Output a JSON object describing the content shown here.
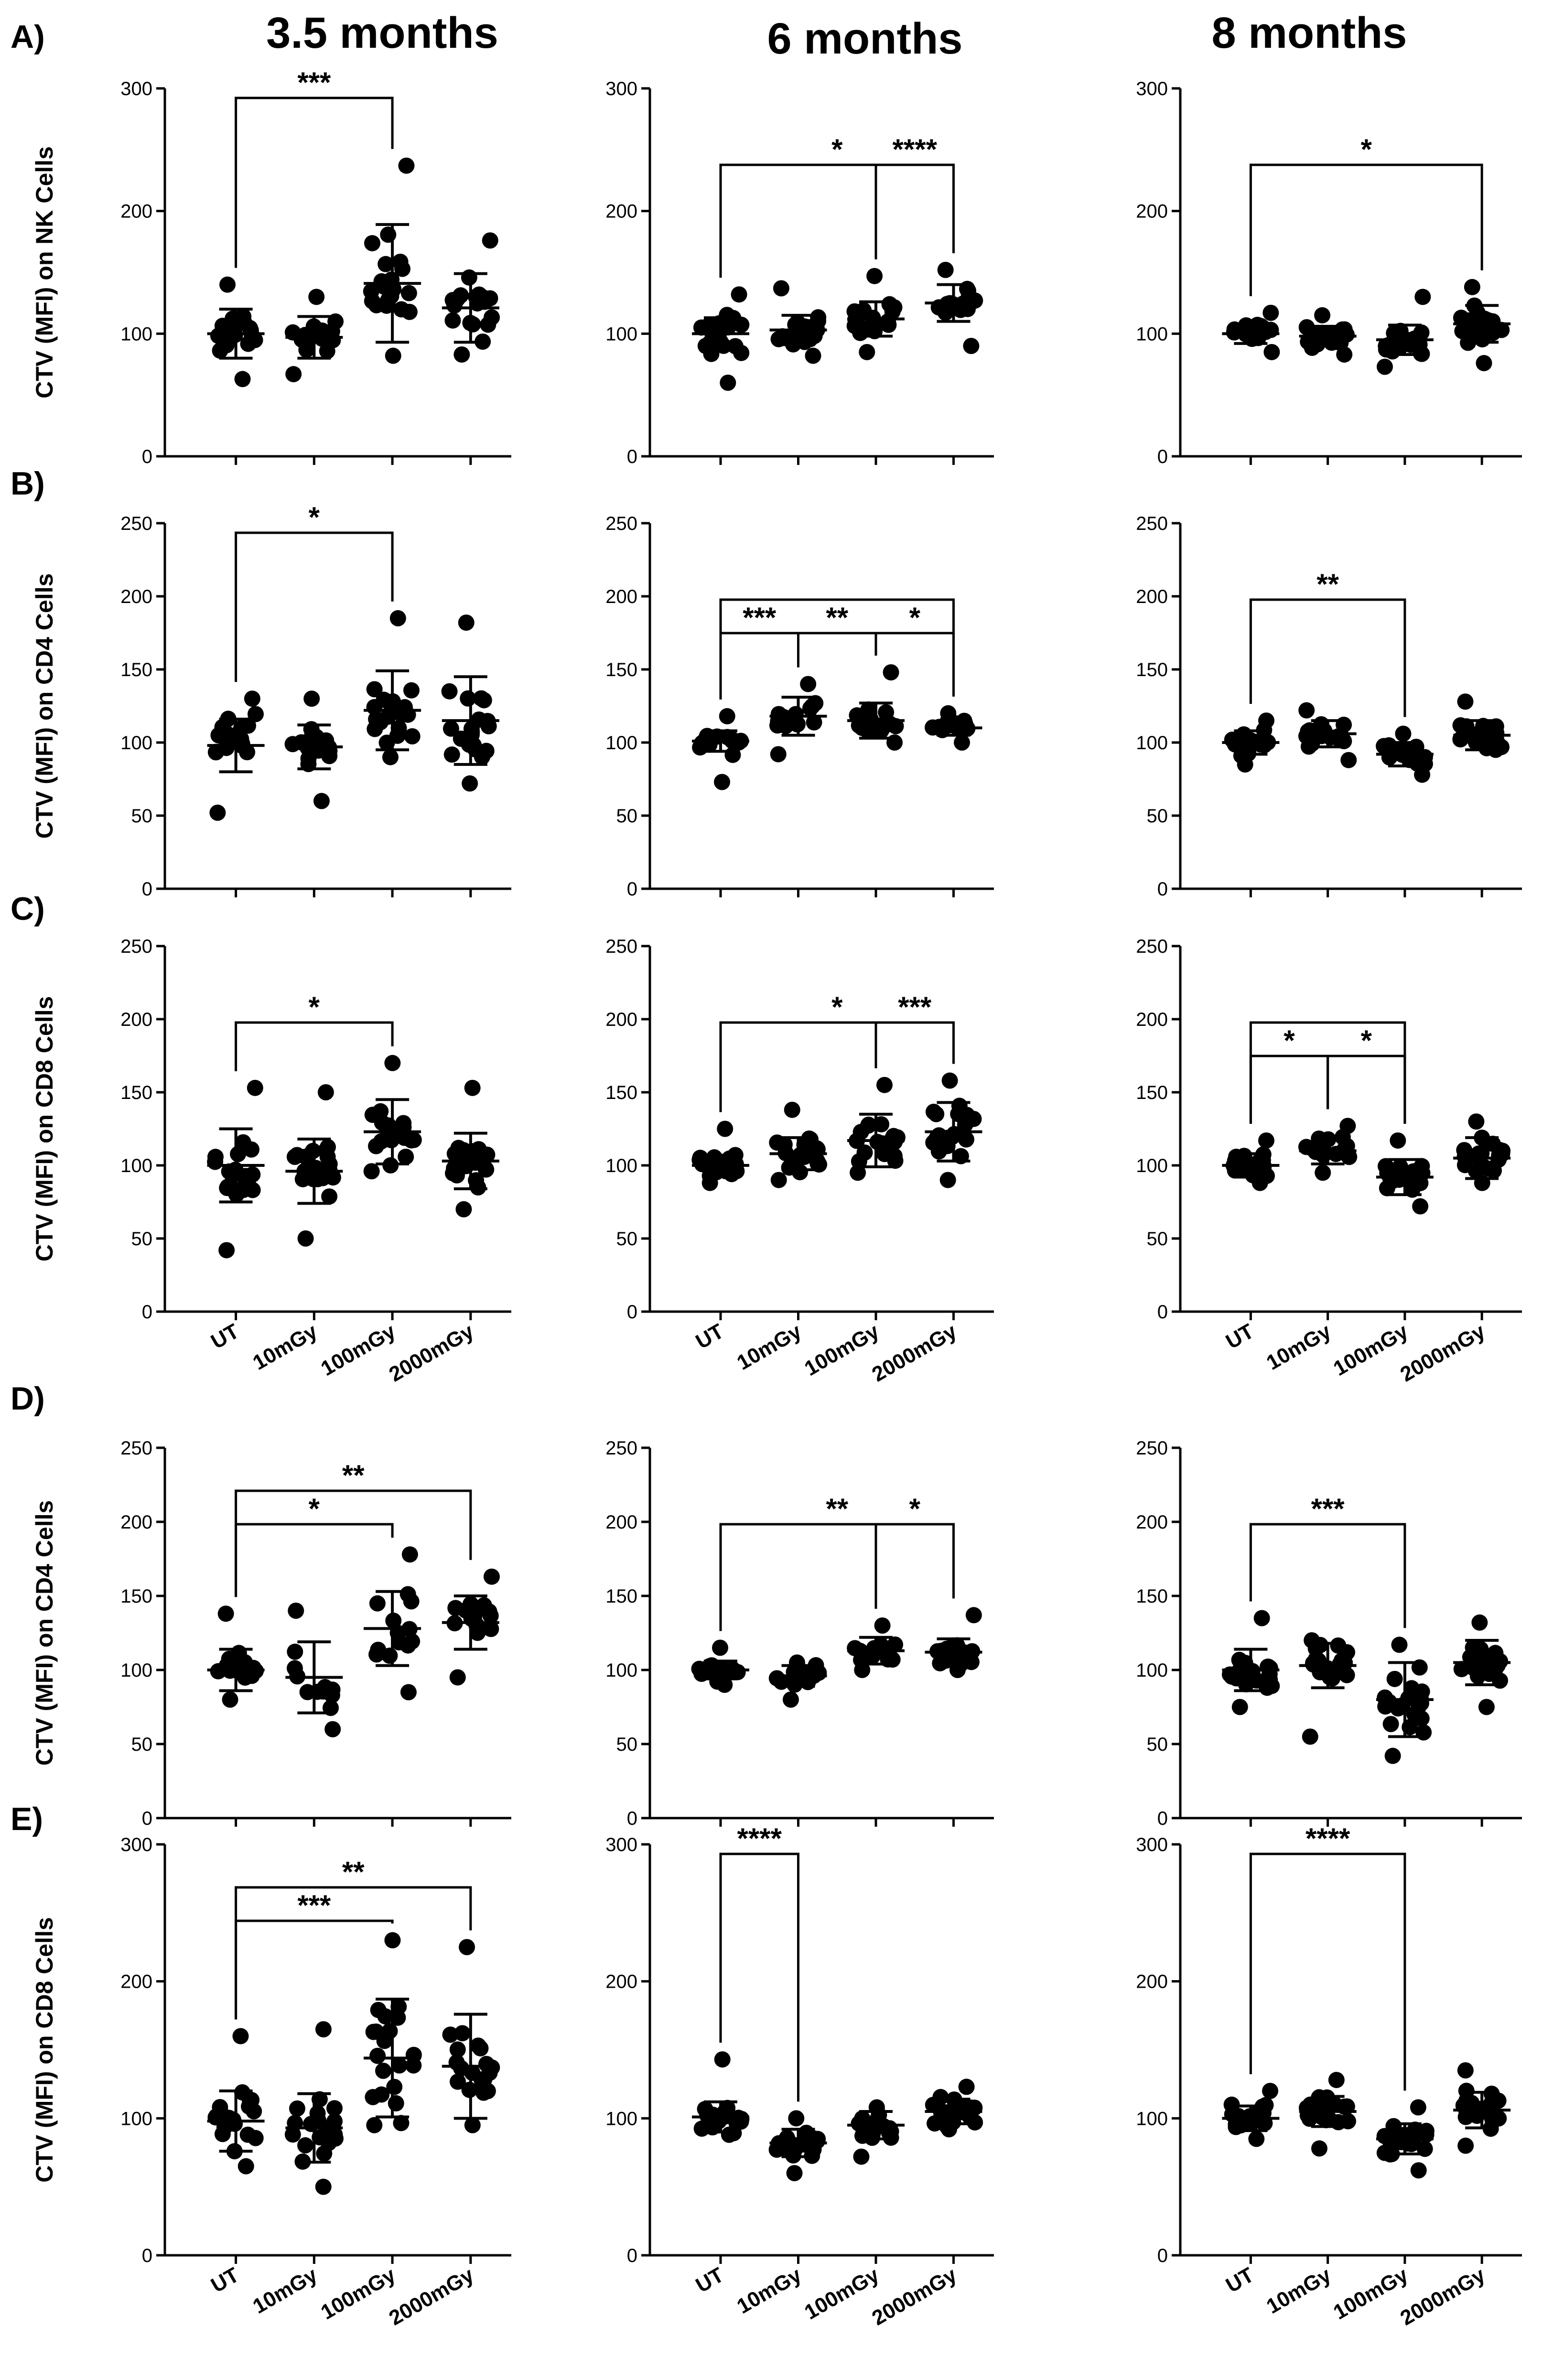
{
  "figure": {
    "column_titles": [
      "3.5 months",
      "6 months",
      "8 months"
    ],
    "row_letters": [
      "A)",
      "B)",
      "C)",
      "D)",
      "E)"
    ],
    "ylabels": [
      "CTV (MFI) on NK Cells",
      "CTV (MFI) on CD4 Cells",
      "CTV (MFI) on CD8 Cells",
      "CTV (MFI) on CD4 Cells",
      "CTV (MFI) on CD8 Cells"
    ]
  },
  "chart_data": {
    "type": "scatter",
    "categories": [
      "UT",
      "10mGy",
      "100mGy",
      "2000mGy"
    ],
    "panels": [
      {
        "row": "A",
        "col": "3.5 months",
        "ylabel": "CTV (MFI) on NK Cells",
        "yticks": [
          0,
          100,
          200,
          300
        ],
        "ylim": [
          0,
          300
        ],
        "groups": [
          {
            "center": 100,
            "spread": 20,
            "n": 20,
            "min": 63,
            "max": 140,
            "mean": 100,
            "sd": 20
          },
          {
            "center": 97,
            "spread": 18,
            "n": 20,
            "min": 67,
            "max": 130,
            "mean": 97,
            "sd": 17
          },
          {
            "center": 140,
            "spread": 48,
            "n": 20,
            "min": 82,
            "max": 237,
            "mean": 141,
            "sd": 48
          },
          {
            "center": 120,
            "spread": 30,
            "n": 20,
            "min": 83,
            "max": 176,
            "mean": 121,
            "sd": 28
          }
        ],
        "comparisons": [
          {
            "from": 0,
            "to": 2,
            "label": "***",
            "bar": 3
          }
        ]
      },
      {
        "row": "A",
        "col": "6 months",
        "ylabel": "",
        "yticks": [
          0,
          100,
          200,
          300
        ],
        "ylim": [
          0,
          300
        ],
        "groups": [
          {
            "center": 100,
            "spread": 17,
            "n": 20,
            "min": 60,
            "max": 132,
            "mean": 100,
            "sd": 13
          },
          {
            "center": 103,
            "spread": 15,
            "n": 20,
            "min": 82,
            "max": 137,
            "mean": 103,
            "sd": 12
          },
          {
            "center": 112,
            "spread": 18,
            "n": 20,
            "min": 85,
            "max": 147,
            "mean": 112,
            "sd": 14
          },
          {
            "center": 125,
            "spread": 15,
            "n": 20,
            "min": 90,
            "max": 152,
            "mean": 125,
            "sd": 15
          }
        ],
        "comparisons": [
          {
            "from": 0,
            "to": 3,
            "label": "*",
            "bar": 1
          },
          {
            "from": 2,
            "to": 3,
            "label": "****",
            "bar": 1
          }
        ]
      },
      {
        "row": "A",
        "col": "8 months",
        "ylabel": "",
        "yticks": [
          0,
          100,
          200,
          300
        ],
        "ylim": [
          0,
          300
        ],
        "groups": [
          {
            "center": 100,
            "spread": 10,
            "n": 20,
            "min": 85,
            "max": 117,
            "mean": 100,
            "sd": 8
          },
          {
            "center": 98,
            "spread": 10,
            "n": 20,
            "min": 83,
            "max": 115,
            "mean": 98,
            "sd": 8
          },
          {
            "center": 95,
            "spread": 12,
            "n": 20,
            "min": 73,
            "max": 130,
            "mean": 95,
            "sd": 12
          },
          {
            "center": 108,
            "spread": 15,
            "n": 20,
            "min": 76,
            "max": 138,
            "mean": 108,
            "sd": 15
          }
        ],
        "comparisons": [
          {
            "from": 0,
            "to": 3,
            "label": "*",
            "bar": 1
          }
        ]
      },
      {
        "row": "B",
        "col": "3.5 months",
        "ylabel": "CTV (MFI) on CD4 Cells",
        "yticks": [
          0,
          50,
          100,
          150,
          200,
          250
        ],
        "ylim": [
          0,
          250
        ],
        "groups": [
          {
            "center": 100,
            "spread": 18,
            "n": 20,
            "min": 52,
            "max": 130,
            "mean": 98,
            "sd": 18
          },
          {
            "center": 97,
            "spread": 16,
            "n": 20,
            "min": 60,
            "max": 130,
            "mean": 97,
            "sd": 15
          },
          {
            "center": 120,
            "spread": 26,
            "n": 20,
            "min": 90,
            "max": 185,
            "mean": 122,
            "sd": 27
          },
          {
            "center": 113,
            "spread": 30,
            "n": 20,
            "min": 72,
            "max": 182,
            "mean": 115,
            "sd": 30
          }
        ],
        "comparisons": [
          {
            "from": 0,
            "to": 2,
            "label": "*",
            "bar": 3
          }
        ]
      },
      {
        "row": "B",
        "col": "6 months",
        "ylabel": "",
        "yticks": [
          0,
          50,
          100,
          150,
          200,
          250
        ],
        "ylim": [
          0,
          250
        ],
        "groups": [
          {
            "center": 101,
            "spread": 8,
            "n": 16,
            "min": 73,
            "max": 118,
            "mean": 101,
            "sd": 7
          },
          {
            "center": 118,
            "spread": 14,
            "n": 16,
            "min": 92,
            "max": 140,
            "mean": 118,
            "sd": 13
          },
          {
            "center": 113,
            "spread": 12,
            "n": 16,
            "min": 100,
            "max": 148,
            "mean": 115,
            "sd": 12
          },
          {
            "center": 110,
            "spread": 6,
            "n": 16,
            "min": 100,
            "max": 120,
            "mean": 110,
            "sd": 5
          }
        ],
        "comparisons": [
          {
            "from": 0,
            "to": 3,
            "label": "",
            "bar": 1
          },
          {
            "from": 0,
            "to": 1,
            "label": "***",
            "bar": 0
          },
          {
            "from": 1,
            "to": 2,
            "label": "**",
            "bar": 0
          },
          {
            "from": 2,
            "to": 3,
            "label": "*",
            "bar": 0
          }
        ]
      },
      {
        "row": "B",
        "col": "8 months",
        "ylabel": "",
        "yticks": [
          0,
          50,
          100,
          150,
          200,
          250
        ],
        "ylim": [
          0,
          250
        ],
        "groups": [
          {
            "center": 100,
            "spread": 8,
            "n": 20,
            "min": 85,
            "max": 115,
            "mean": 100,
            "sd": 8
          },
          {
            "center": 106,
            "spread": 10,
            "n": 20,
            "min": 88,
            "max": 122,
            "mean": 106,
            "sd": 9
          },
          {
            "center": 92,
            "spread": 8,
            "n": 20,
            "min": 78,
            "max": 106,
            "mean": 92,
            "sd": 8
          },
          {
            "center": 105,
            "spread": 10,
            "n": 20,
            "min": 95,
            "max": 128,
            "mean": 105,
            "sd": 10
          }
        ],
        "comparisons": [
          {
            "from": 0,
            "to": 2,
            "label": "**",
            "bar": 1
          }
        ]
      },
      {
        "row": "C",
        "col": "3.5 months",
        "ylabel": "CTV (MFI) on CD8 Cells",
        "yticks": [
          0,
          50,
          100,
          150,
          200,
          250
        ],
        "ylim": [
          0,
          250
        ],
        "groups": [
          {
            "center": 100,
            "spread": 25,
            "n": 20,
            "min": 42,
            "max": 153,
            "mean": 100,
            "sd": 25
          },
          {
            "center": 95,
            "spread": 22,
            "n": 20,
            "min": 50,
            "max": 150,
            "mean": 96,
            "sd": 22
          },
          {
            "center": 123,
            "spread": 22,
            "n": 20,
            "min": 96,
            "max": 170,
            "mean": 123,
            "sd": 22
          },
          {
            "center": 103,
            "spread": 20,
            "n": 20,
            "min": 70,
            "max": 153,
            "mean": 103,
            "sd": 19
          }
        ],
        "comparisons": [
          {
            "from": 0,
            "to": 2,
            "label": "*",
            "bar": 1
          }
        ]
      },
      {
        "row": "C",
        "col": "6 months",
        "ylabel": "",
        "yticks": [
          0,
          50,
          100,
          150,
          200,
          250
        ],
        "ylim": [
          0,
          250
        ],
        "groups": [
          {
            "center": 100,
            "spread": 8,
            "n": 20,
            "min": 88,
            "max": 125,
            "mean": 100,
            "sd": 7
          },
          {
            "center": 108,
            "spread": 12,
            "n": 20,
            "min": 90,
            "max": 138,
            "mean": 108,
            "sd": 11
          },
          {
            "center": 115,
            "spread": 18,
            "n": 20,
            "min": 95,
            "max": 155,
            "mean": 117,
            "sd": 18
          },
          {
            "center": 122,
            "spread": 20,
            "n": 20,
            "min": 90,
            "max": 158,
            "mean": 123,
            "sd": 20
          }
        ],
        "comparisons": [
          {
            "from": 0,
            "to": 3,
            "label": "*",
            "bar": 1
          },
          {
            "from": 2,
            "to": 3,
            "label": "***",
            "bar": 1
          }
        ]
      },
      {
        "row": "C",
        "col": "8 months",
        "ylabel": "",
        "yticks": [
          0,
          50,
          100,
          150,
          200,
          250
        ],
        "ylim": [
          0,
          250
        ],
        "groups": [
          {
            "center": 100,
            "spread": 10,
            "n": 20,
            "min": 88,
            "max": 117,
            "mean": 100,
            "sd": 8
          },
          {
            "center": 110,
            "spread": 10,
            "n": 20,
            "min": 95,
            "max": 127,
            "mean": 110,
            "sd": 9
          },
          {
            "center": 92,
            "spread": 12,
            "n": 20,
            "min": 72,
            "max": 117,
            "mean": 92,
            "sd": 12
          },
          {
            "center": 105,
            "spread": 14,
            "n": 20,
            "min": 88,
            "max": 130,
            "mean": 105,
            "sd": 14
          }
        ],
        "comparisons": [
          {
            "from": 0,
            "to": 1,
            "label": "*",
            "bar": 0
          },
          {
            "from": 1,
            "to": 2,
            "label": "*",
            "bar": 0
          },
          {
            "from": 0,
            "to": 2,
            "label": "",
            "bar": 1
          }
        ]
      },
      {
        "row": "D",
        "col": "3.5 months",
        "ylabel": "CTV (MFI) on CD4 Cells",
        "yticks": [
          0,
          50,
          100,
          150,
          200,
          250
        ],
        "ylim": [
          0,
          250
        ],
        "groups": [
          {
            "center": 100,
            "spread": 14,
            "n": 14,
            "min": 80,
            "max": 138,
            "mean": 100,
            "sd": 14
          },
          {
            "center": 92,
            "spread": 22,
            "n": 14,
            "min": 60,
            "max": 140,
            "mean": 95,
            "sd": 24
          },
          {
            "center": 125,
            "spread": 25,
            "n": 14,
            "min": 85,
            "max": 178,
            "mean": 128,
            "sd": 25
          },
          {
            "center": 132,
            "spread": 18,
            "n": 14,
            "min": 95,
            "max": 163,
            "mean": 132,
            "sd": 18
          }
        ],
        "comparisons": [
          {
            "from": 0,
            "to": 2,
            "label": "*",
            "bar": 1
          },
          {
            "from": 0,
            "to": 3,
            "label": "**",
            "bar": 2
          }
        ]
      },
      {
        "row": "D",
        "col": "6 months",
        "ylabel": "",
        "yticks": [
          0,
          50,
          100,
          150,
          200,
          250
        ],
        "ylim": [
          0,
          250
        ],
        "groups": [
          {
            "center": 100,
            "spread": 8,
            "n": 16,
            "min": 90,
            "max": 115,
            "mean": 100,
            "sd": 6
          },
          {
            "center": 96,
            "spread": 8,
            "n": 16,
            "min": 80,
            "max": 105,
            "mean": 96,
            "sd": 7
          },
          {
            "center": 113,
            "spread": 10,
            "n": 16,
            "min": 100,
            "max": 130,
            "mean": 113,
            "sd": 9
          },
          {
            "center": 110,
            "spread": 8,
            "n": 16,
            "min": 100,
            "max": 137,
            "mean": 112,
            "sd": 9
          }
        ],
        "comparisons": [
          {
            "from": 0,
            "to": 3,
            "label": "**",
            "bar": 1
          },
          {
            "from": 2,
            "to": 3,
            "label": "*",
            "bar": 1
          }
        ]
      },
      {
        "row": "D",
        "col": "8 months",
        "ylabel": "",
        "yticks": [
          0,
          50,
          100,
          150,
          200,
          250
        ],
        "ylim": [
          0,
          250
        ],
        "groups": [
          {
            "center": 100,
            "spread": 14,
            "n": 20,
            "min": 75,
            "max": 135,
            "mean": 100,
            "sd": 14
          },
          {
            "center": 105,
            "spread": 15,
            "n": 20,
            "min": 55,
            "max": 120,
            "mean": 103,
            "sd": 15
          },
          {
            "center": 80,
            "spread": 28,
            "n": 20,
            "min": 42,
            "max": 117,
            "mean": 80,
            "sd": 25
          },
          {
            "center": 105,
            "spread": 15,
            "n": 20,
            "min": 75,
            "max": 132,
            "mean": 105,
            "sd": 15
          }
        ],
        "comparisons": [
          {
            "from": 0,
            "to": 2,
            "label": "***",
            "bar": 1
          }
        ]
      },
      {
        "row": "E",
        "col": "3.5 months",
        "ylabel": "CTV (MFI) on CD8 Cells",
        "yticks": [
          0,
          100,
          200,
          300
        ],
        "ylim": [
          0,
          300
        ],
        "groups": [
          {
            "center": 100,
            "spread": 22,
            "n": 20,
            "min": 65,
            "max": 160,
            "mean": 98,
            "sd": 22
          },
          {
            "center": 92,
            "spread": 25,
            "n": 20,
            "min": 50,
            "max": 165,
            "mean": 93,
            "sd": 25
          },
          {
            "center": 143,
            "spread": 45,
            "n": 20,
            "min": 95,
            "max": 230,
            "mean": 144,
            "sd": 43
          },
          {
            "center": 135,
            "spread": 40,
            "n": 20,
            "min": 95,
            "max": 225,
            "mean": 138,
            "sd": 38
          }
        ],
        "comparisons": [
          {
            "from": 0,
            "to": 2,
            "label": "***",
            "bar": 1
          },
          {
            "from": 0,
            "to": 3,
            "label": "**",
            "bar": 2
          }
        ]
      },
      {
        "row": "E",
        "col": "6 months",
        "ylabel": "",
        "yticks": [
          0,
          100,
          200,
          300
        ],
        "ylim": [
          0,
          300
        ],
        "groups": [
          {
            "center": 100,
            "spread": 12,
            "n": 20,
            "min": 88,
            "max": 143,
            "mean": 101,
            "sd": 11
          },
          {
            "center": 82,
            "spread": 12,
            "n": 20,
            "min": 60,
            "max": 100,
            "mean": 82,
            "sd": 10
          },
          {
            "center": 95,
            "spread": 12,
            "n": 20,
            "min": 72,
            "max": 108,
            "mean": 95,
            "sd": 10
          },
          {
            "center": 105,
            "spread": 10,
            "n": 20,
            "min": 92,
            "max": 123,
            "mean": 105,
            "sd": 9
          }
        ],
        "comparisons": [
          {
            "from": 0,
            "to": 1,
            "label": "****",
            "bar": 3
          }
        ]
      },
      {
        "row": "E",
        "col": "8 months",
        "ylabel": "",
        "yticks": [
          0,
          100,
          200,
          300
        ],
        "ylim": [
          0,
          300
        ],
        "groups": [
          {
            "center": 100,
            "spread": 10,
            "n": 20,
            "min": 85,
            "max": 120,
            "mean": 100,
            "sd": 9
          },
          {
            "center": 105,
            "spread": 12,
            "n": 20,
            "min": 78,
            "max": 128,
            "mean": 105,
            "sd": 11
          },
          {
            "center": 85,
            "spread": 12,
            "n": 20,
            "min": 62,
            "max": 108,
            "mean": 85,
            "sd": 11
          },
          {
            "center": 105,
            "spread": 14,
            "n": 20,
            "min": 80,
            "max": 135,
            "mean": 106,
            "sd": 13
          }
        ],
        "comparisons": [
          {
            "from": 0,
            "to": 2,
            "label": "****",
            "bar": 3
          }
        ]
      }
    ]
  }
}
